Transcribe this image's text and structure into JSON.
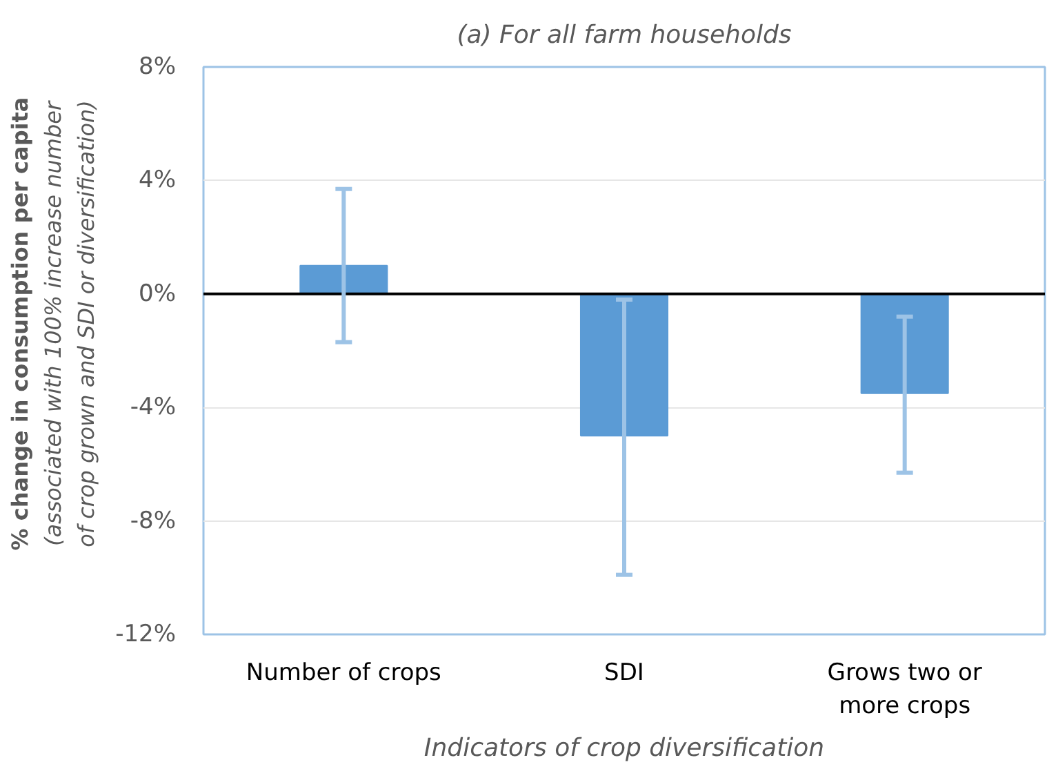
{
  "chart_data": {
    "type": "bar",
    "title": "(a) For all farm households",
    "xlabel": "Indicators of crop diversification",
    "ylabel": "% change in consumption per capita\n(associated with 100% increase number\nof crop grown and SDI or diversification)",
    "categories": [
      "Number of crops",
      "SDI",
      "Grows two or more crops"
    ],
    "values": [
      1.0,
      -5.0,
      -3.5
    ],
    "errors": [
      [
        -1.7,
        3.7
      ],
      [
        -9.9,
        -0.2
      ],
      [
        -6.3,
        -0.8
      ]
    ],
    "color": "#5b9bd5",
    "ylim": [
      -12,
      8
    ],
    "yticks": [
      {
        "value": -12,
        "label": "-12%"
      },
      {
        "value": -8,
        "label": "-8%"
      },
      {
        "value": -4,
        "label": "-4%"
      },
      {
        "value": 0,
        "label": "0%"
      },
      {
        "value": 4,
        "label": "4%"
      },
      {
        "value": 8,
        "label": "8%"
      }
    ],
    "ref_lines": [
      {
        "axis": "y",
        "value": 0,
        "color": "#000000"
      }
    ],
    "grid": "y"
  }
}
